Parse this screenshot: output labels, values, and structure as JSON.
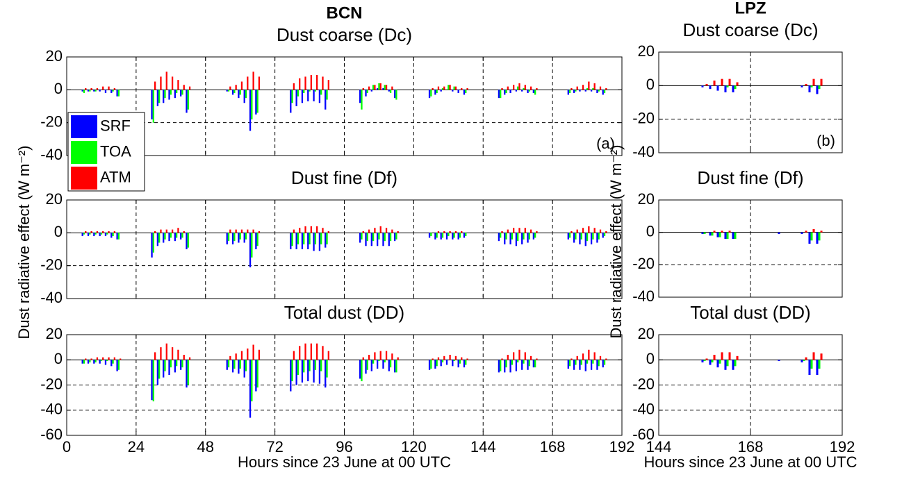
{
  "chart_data": [
    {
      "type": "bar",
      "header": "BCN",
      "title": "Dust coarse (Dc)",
      "annotation": "(a)",
      "legend": "lower left",
      "x": [
        6,
        8,
        10,
        12,
        14,
        16,
        18,
        30,
        32,
        34,
        36,
        38,
        40,
        42,
        54,
        56,
        58,
        60,
        62,
        64,
        66,
        78,
        80,
        82,
        84,
        86,
        88,
        90,
        102,
        104,
        106,
        108,
        110,
        112,
        114,
        126,
        128,
        130,
        132,
        134,
        136,
        138,
        150,
        152,
        154,
        156,
        158,
        160,
        162,
        174,
        176,
        178,
        180,
        182,
        184,
        186
      ],
      "series": [
        {
          "name": "SRF",
          "color": "#0000ff",
          "values": [
            -1,
            -1,
            -1,
            -1,
            -2,
            -2,
            -4,
            -18,
            -10,
            -8,
            -6,
            -5,
            -4,
            -14,
            0,
            -1,
            -3,
            -5,
            -8,
            -25,
            -15,
            -14,
            -10,
            -8,
            -7,
            -7,
            -8,
            -12,
            -8,
            -4,
            -1,
            1,
            1,
            -1,
            -5,
            -5,
            -3,
            -1,
            0,
            -1,
            -2,
            -3,
            -5,
            -3,
            -2,
            -1,
            -1,
            -2,
            -2,
            -3,
            -2,
            -1,
            -1,
            -1,
            -2,
            -3
          ]
        },
        {
          "name": "TOA",
          "color": "#00ff00",
          "values": [
            -2,
            -1,
            -1,
            0,
            0,
            -1,
            -4,
            -20,
            -8,
            -5,
            -3,
            -2,
            -3,
            -12,
            0,
            -1,
            -2,
            -3,
            -5,
            -18,
            -14,
            -8,
            -4,
            -2,
            -1,
            -1,
            -3,
            -6,
            -12,
            -2,
            3,
            4,
            3,
            -2,
            -6,
            -4,
            -2,
            1,
            3,
            2,
            0,
            -2,
            -5,
            -2,
            0,
            2,
            1,
            -1,
            -3,
            -2,
            -1,
            0,
            1,
            1,
            -1,
            -2
          ]
        },
        {
          "name": "ATM",
          "color": "#ff0000",
          "values": [
            1,
            1,
            1,
            2,
            2,
            1,
            0,
            5,
            8,
            11,
            8,
            6,
            3,
            2,
            0,
            2,
            3,
            5,
            8,
            11,
            8,
            4,
            7,
            8,
            9,
            9,
            8,
            6,
            1,
            2,
            3,
            4,
            3,
            2,
            0,
            1,
            2,
            2,
            3,
            2,
            1,
            1,
            1,
            2,
            3,
            4,
            3,
            2,
            1,
            1,
            2,
            3,
            5,
            4,
            2,
            1
          ]
        }
      ],
      "xlim": [
        0,
        192
      ],
      "xticks": [
        0,
        24,
        48,
        72,
        96,
        120,
        144,
        168,
        192
      ],
      "xticklabels": false,
      "ylim": [
        -40,
        20
      ],
      "yticks": [
        -40,
        -20,
        0,
        20
      ],
      "grid": true
    },
    {
      "type": "bar",
      "title": "Dust fine (Df)",
      "ylabel": "Dust radiative effect (W m⁻²)",
      "x": [
        6,
        8,
        10,
        12,
        14,
        16,
        18,
        30,
        32,
        34,
        36,
        38,
        40,
        42,
        54,
        56,
        58,
        60,
        62,
        64,
        66,
        78,
        80,
        82,
        84,
        86,
        88,
        90,
        102,
        104,
        106,
        108,
        110,
        112,
        114,
        126,
        128,
        130,
        132,
        134,
        136,
        138,
        150,
        152,
        154,
        156,
        158,
        160,
        162,
        174,
        176,
        178,
        180,
        182,
        184,
        186
      ],
      "series": [
        {
          "color": "#0000ff",
          "values": [
            -2,
            -2,
            -2,
            -2,
            -2,
            -3,
            -4,
            -15,
            -8,
            -6,
            -5,
            -5,
            -4,
            -10,
            0,
            -7,
            -7,
            -6,
            -6,
            -21,
            -10,
            -10,
            -10,
            -10,
            -10,
            -11,
            -11,
            -9,
            -6,
            -8,
            -8,
            -8,
            -8,
            -8,
            -5,
            -3,
            -4,
            -4,
            -4,
            -4,
            -4,
            -3,
            -5,
            -7,
            -7,
            -8,
            -7,
            -6,
            -4,
            -4,
            -6,
            -7,
            -8,
            -7,
            -6,
            -3
          ]
        },
        {
          "color": "#00ff00",
          "values": [
            -1,
            -1,
            -1,
            -1,
            -1,
            -2,
            -4,
            -12,
            -6,
            -4,
            -3,
            -3,
            -3,
            -9,
            0,
            -5,
            -5,
            -4,
            -4,
            -15,
            -8,
            -8,
            -7,
            -7,
            -7,
            -7,
            -7,
            -7,
            -4,
            -5,
            -5,
            -4,
            -5,
            -5,
            -4,
            -2,
            -3,
            -3,
            -2,
            -3,
            -3,
            -2,
            -3,
            -4,
            -4,
            -5,
            -4,
            -4,
            -3,
            -3,
            -4,
            -4,
            -5,
            -4,
            -4,
            -2
          ]
        },
        {
          "color": "#ff0000",
          "values": [
            1,
            1,
            1,
            1,
            1,
            1,
            0,
            1,
            2,
            2,
            2,
            3,
            1,
            0,
            0,
            2,
            2,
            2,
            2,
            2,
            1,
            2,
            3,
            4,
            4,
            4,
            3,
            1,
            1,
            2,
            3,
            4,
            3,
            2,
            1,
            0,
            1,
            1,
            1,
            1,
            1,
            0,
            1,
            2,
            3,
            3,
            3,
            2,
            1,
            1,
            2,
            3,
            4,
            3,
            2,
            1
          ]
        }
      ],
      "xlim": [
        0,
        192
      ],
      "xticks": [
        0,
        24,
        48,
        72,
        96,
        120,
        144,
        168,
        192
      ],
      "xticklabels": false,
      "ylim": [
        -40,
        20
      ],
      "yticks": [
        -40,
        -20,
        0,
        20
      ],
      "grid": true
    },
    {
      "type": "bar",
      "title": "Total dust (DD)",
      "xlabel": "Hours since 23 June at 00 UTC",
      "x": [
        6,
        8,
        10,
        12,
        14,
        16,
        18,
        30,
        32,
        34,
        36,
        38,
        40,
        42,
        54,
        56,
        58,
        60,
        62,
        64,
        66,
        78,
        80,
        82,
        84,
        86,
        88,
        90,
        102,
        104,
        106,
        108,
        110,
        112,
        114,
        126,
        128,
        130,
        132,
        134,
        136,
        138,
        150,
        152,
        154,
        156,
        158,
        160,
        162,
        174,
        176,
        178,
        180,
        182,
        184,
        186
      ],
      "series": [
        {
          "color": "#0000ff",
          "values": [
            -3,
            -3,
            -3,
            -3,
            -4,
            -5,
            -9,
            -32,
            -20,
            -14,
            -12,
            -10,
            -8,
            -22,
            0,
            -8,
            -10,
            -11,
            -14,
            -46,
            -25,
            -25,
            -20,
            -18,
            -17,
            -18,
            -19,
            -22,
            -15,
            -11,
            -9,
            -7,
            -7,
            -9,
            -10,
            -8,
            -7,
            -5,
            -4,
            -5,
            -6,
            -6,
            -10,
            -10,
            -10,
            -9,
            -8,
            -8,
            -6,
            -7,
            -8,
            -8,
            -9,
            -8,
            -8,
            -6
          ]
        },
        {
          "color": "#00ff00",
          "values": [
            -3,
            -2,
            -2,
            -1,
            -1,
            -3,
            -8,
            -33,
            -15,
            -9,
            -6,
            -5,
            -6,
            -20,
            0,
            -6,
            -7,
            -7,
            -9,
            -33,
            -22,
            -17,
            -12,
            -10,
            -9,
            -8,
            -9,
            -14,
            -17,
            -8,
            -3,
            -1,
            -2,
            -6,
            -10,
            -7,
            -5,
            -2,
            0,
            -1,
            -3,
            -4,
            -9,
            -6,
            -4,
            -2,
            -3,
            -5,
            -6,
            -5,
            -4,
            -4,
            -3,
            -3,
            -5,
            -4
          ]
        },
        {
          "color": "#ff0000",
          "values": [
            1,
            1,
            2,
            2,
            2,
            2,
            1,
            6,
            10,
            13,
            10,
            8,
            4,
            2,
            0,
            3,
            5,
            7,
            9,
            12,
            8,
            7,
            11,
            13,
            13,
            13,
            11,
            7,
            2,
            4,
            6,
            7,
            7,
            5,
            2,
            1,
            2,
            3,
            4,
            3,
            2,
            1,
            1,
            4,
            6,
            8,
            6,
            3,
            1,
            1,
            3,
            5,
            8,
            6,
            3,
            1
          ]
        }
      ],
      "xlim": [
        0,
        192
      ],
      "xticks": [
        0,
        24,
        48,
        72,
        96,
        120,
        144,
        168,
        192
      ],
      "xticklabels": true,
      "ylim": [
        -60,
        20
      ],
      "yticks": [
        -60,
        -40,
        -20,
        0,
        20
      ],
      "grid": true
    },
    {
      "type": "bar",
      "header": "LPZ",
      "title": "Dust coarse (Dc)",
      "annotation": "(b)",
      "x": [
        154,
        156,
        158,
        160,
        162,
        164,
        176,
        178,
        180,
        182,
        184,
        186
      ],
      "series": [
        {
          "color": "#0000ff",
          "values": [
            0,
            -1,
            -2,
            -3,
            -4,
            -4,
            0,
            0,
            0,
            -1,
            -4,
            -5
          ]
        },
        {
          "color": "#00ff00",
          "values": [
            0,
            0,
            0,
            0,
            -1,
            -2,
            0,
            0,
            0,
            0,
            -1,
            -2
          ]
        },
        {
          "color": "#ff0000",
          "values": [
            0,
            1,
            3,
            4,
            4,
            2,
            0,
            0,
            0,
            1,
            4,
            4
          ]
        }
      ],
      "xlim": [
        144,
        192
      ],
      "xticks": [
        144,
        168,
        192
      ],
      "xticklabels": false,
      "ylim": [
        -40,
        20
      ],
      "yticks": [
        -40,
        -20,
        0,
        20
      ],
      "grid": true
    },
    {
      "type": "bar",
      "title": "Dust fine (Df)",
      "ylabel": "Dust radiative effect (W m⁻²)",
      "x": [
        154,
        156,
        158,
        160,
        162,
        164,
        176,
        178,
        180,
        182,
        184,
        186
      ],
      "series": [
        {
          "color": "#0000ff",
          "values": [
            0,
            -1,
            -2,
            -3,
            -4,
            -4,
            -1,
            0,
            0,
            -1,
            -7,
            -7
          ]
        },
        {
          "color": "#00ff00",
          "values": [
            0,
            -1,
            -2,
            -3,
            -4,
            -4,
            0,
            0,
            0,
            0,
            -5,
            -5
          ]
        },
        {
          "color": "#ff0000",
          "values": [
            0,
            0,
            1,
            1,
            1,
            0,
            0,
            0,
            0,
            1,
            2,
            1
          ]
        }
      ],
      "xlim": [
        144,
        192
      ],
      "xticks": [
        144,
        168,
        192
      ],
      "xticklabels": false,
      "ylim": [
        -40,
        20
      ],
      "yticks": [
        -40,
        -20,
        0,
        20
      ],
      "grid": true
    },
    {
      "type": "bar",
      "title": "Total dust (DD)",
      "xlabel": "Hours since 23 June at 00 UTC",
      "x": [
        154,
        156,
        158,
        160,
        162,
        164,
        176,
        178,
        180,
        182,
        184,
        186
      ],
      "series": [
        {
          "color": "#0000ff",
          "values": [
            0,
            -2,
            -4,
            -6,
            -8,
            -8,
            -1,
            0,
            0,
            -2,
            -12,
            -12
          ]
        },
        {
          "color": "#00ff00",
          "values": [
            0,
            -1,
            -2,
            -3,
            -5,
            -5,
            0,
            0,
            0,
            -1,
            -7,
            -7
          ]
        },
        {
          "color": "#ff0000",
          "values": [
            0,
            1,
            4,
            6,
            6,
            3,
            0,
            0,
            0,
            2,
            6,
            5
          ]
        }
      ],
      "xlim": [
        144,
        192
      ],
      "xticks": [
        144,
        168,
        192
      ],
      "xticklabels": true,
      "ylim": [
        -60,
        20
      ],
      "yticks": [
        -60,
        -40,
        -20,
        0,
        20
      ],
      "grid": true
    }
  ]
}
